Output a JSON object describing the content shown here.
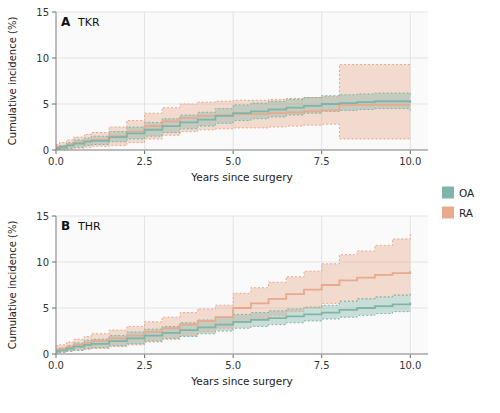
{
  "chart_data": [
    {
      "type": "step",
      "panel_label": "A",
      "title": "TKR",
      "xlabel": "Years since surgery",
      "ylabel": "Cumulative incidence (%)",
      "xlim": [
        0,
        10.5
      ],
      "xticks": [
        {
          "value": 0.0,
          "label": "0.0"
        },
        2.5,
        {
          "value": 5.0,
          "label": "5.0"
        },
        7.5,
        {
          "value": 10.0,
          "label": "10.0"
        }
      ],
      "ylim": [
        0,
        15
      ],
      "yticks": [
        0,
        5,
        10,
        15
      ],
      "grid": true,
      "legend": "right",
      "x": [
        0.0,
        0.1,
        0.3,
        0.5,
        0.8,
        1.0,
        1.5,
        2.0,
        2.5,
        3.0,
        3.5,
        4.0,
        4.5,
        5.0,
        5.5,
        6.0,
        6.5,
        7.0,
        7.5,
        8.0,
        8.5,
        9.0,
        9.5,
        10.0
      ],
      "series": [
        {
          "name": "OA",
          "color": "#7fb5a8",
          "values": [
            0.2,
            0.3,
            0.5,
            0.7,
            0.9,
            1.0,
            1.4,
            1.8,
            2.2,
            2.6,
            3.0,
            3.3,
            3.7,
            4.0,
            4.2,
            4.4,
            4.6,
            4.8,
            5.0,
            5.1,
            5.2,
            5.3,
            5.3,
            5.1
          ],
          "lower": [
            0.0,
            0.1,
            0.2,
            0.3,
            0.5,
            0.6,
            0.9,
            1.2,
            1.5,
            1.9,
            2.3,
            2.6,
            2.9,
            3.2,
            3.4,
            3.6,
            3.8,
            4.0,
            4.2,
            4.3,
            4.4,
            4.5,
            4.5,
            4.3
          ],
          "upper": [
            0.4,
            0.5,
            0.8,
            1.1,
            1.3,
            1.5,
            2.0,
            2.5,
            3.0,
            3.4,
            3.8,
            4.1,
            4.5,
            4.9,
            5.1,
            5.3,
            5.5,
            5.7,
            5.9,
            6.0,
            6.1,
            6.2,
            6.2,
            6.0
          ]
        },
        {
          "name": "RA",
          "color": "#e8a98c",
          "values": [
            0.3,
            0.4,
            0.6,
            0.8,
            1.0,
            1.1,
            1.5,
            2.0,
            2.6,
            3.1,
            3.5,
            3.7,
            3.8,
            3.9,
            3.9,
            4.0,
            4.1,
            4.2,
            4.3,
            4.9,
            4.9,
            4.9,
            4.9,
            4.9
          ],
          "lower": [
            0.0,
            0.0,
            0.1,
            0.2,
            0.3,
            0.4,
            0.5,
            0.8,
            1.2,
            1.6,
            2.0,
            2.2,
            2.3,
            2.4,
            2.4,
            2.5,
            2.6,
            2.7,
            2.8,
            1.2,
            1.2,
            1.2,
            1.2,
            1.2
          ],
          "upper": [
            0.6,
            0.8,
            1.1,
            1.4,
            1.7,
            1.9,
            2.5,
            3.2,
            4.0,
            4.6,
            5.0,
            5.2,
            5.3,
            5.4,
            5.4,
            5.5,
            5.6,
            5.7,
            5.8,
            9.3,
            9.3,
            9.3,
            9.3,
            9.3
          ]
        }
      ]
    },
    {
      "type": "step",
      "panel_label": "B",
      "title": "THR",
      "xlabel": "Years since surgery",
      "ylabel": "Cumulative incidence (%)",
      "xlim": [
        0,
        10.5
      ],
      "xticks": [
        {
          "value": 0.0,
          "label": "0.0"
        },
        2.5,
        {
          "value": 5.0,
          "label": "5.0"
        },
        7.5,
        {
          "value": 10.0,
          "label": "10.0"
        }
      ],
      "ylim": [
        0,
        15
      ],
      "yticks": [
        0,
        5,
        10,
        15
      ],
      "grid": true,
      "x": [
        0.0,
        0.1,
        0.3,
        0.5,
        0.8,
        1.0,
        1.5,
        2.0,
        2.5,
        3.0,
        3.5,
        4.0,
        4.5,
        5.0,
        5.5,
        6.0,
        6.5,
        7.0,
        7.5,
        8.0,
        8.5,
        9.0,
        9.5,
        10.0
      ],
      "series": [
        {
          "name": "OA",
          "color": "#7fb5a8",
          "values": [
            0.3,
            0.4,
            0.6,
            0.8,
            1.0,
            1.1,
            1.4,
            1.7,
            2.0,
            2.3,
            2.6,
            2.9,
            3.2,
            3.5,
            3.7,
            3.9,
            4.1,
            4.3,
            4.5,
            4.8,
            5.0,
            5.2,
            5.4,
            5.6
          ],
          "lower": [
            0.1,
            0.2,
            0.3,
            0.4,
            0.6,
            0.7,
            0.9,
            1.1,
            1.4,
            1.7,
            1.9,
            2.2,
            2.5,
            2.8,
            3.0,
            3.2,
            3.4,
            3.6,
            3.8,
            4.0,
            4.2,
            4.4,
            4.6,
            4.7
          ],
          "upper": [
            0.5,
            0.6,
            0.9,
            1.2,
            1.5,
            1.6,
            2.0,
            2.4,
            2.7,
            3.0,
            3.4,
            3.7,
            4.0,
            4.3,
            4.5,
            4.7,
            4.9,
            5.1,
            5.3,
            5.7,
            6.0,
            6.2,
            6.4,
            6.6
          ]
        },
        {
          "name": "RA",
          "color": "#e8a98c",
          "values": [
            0.5,
            0.6,
            0.8,
            1.0,
            1.2,
            1.4,
            1.7,
            2.0,
            2.4,
            2.8,
            3.2,
            3.6,
            4.0,
            5.0,
            5.5,
            6.0,
            6.5,
            7.0,
            7.5,
            8.0,
            8.3,
            8.6,
            8.8,
            9.0
          ],
          "lower": [
            0.1,
            0.2,
            0.3,
            0.4,
            0.5,
            0.6,
            0.8,
            1.0,
            1.3,
            1.6,
            2.0,
            2.4,
            2.8,
            3.4,
            3.8,
            4.2,
            4.6,
            5.0,
            5.5,
            5.8,
            6.0,
            6.2,
            6.4,
            6.5
          ],
          "upper": [
            0.9,
            1.0,
            1.3,
            1.6,
            1.9,
            2.2,
            2.6,
            3.0,
            3.5,
            4.0,
            4.5,
            4.9,
            5.3,
            6.6,
            7.2,
            7.8,
            8.4,
            9.0,
            9.8,
            10.8,
            11.2,
            11.8,
            12.5,
            13.0
          ]
        }
      ]
    }
  ]
}
